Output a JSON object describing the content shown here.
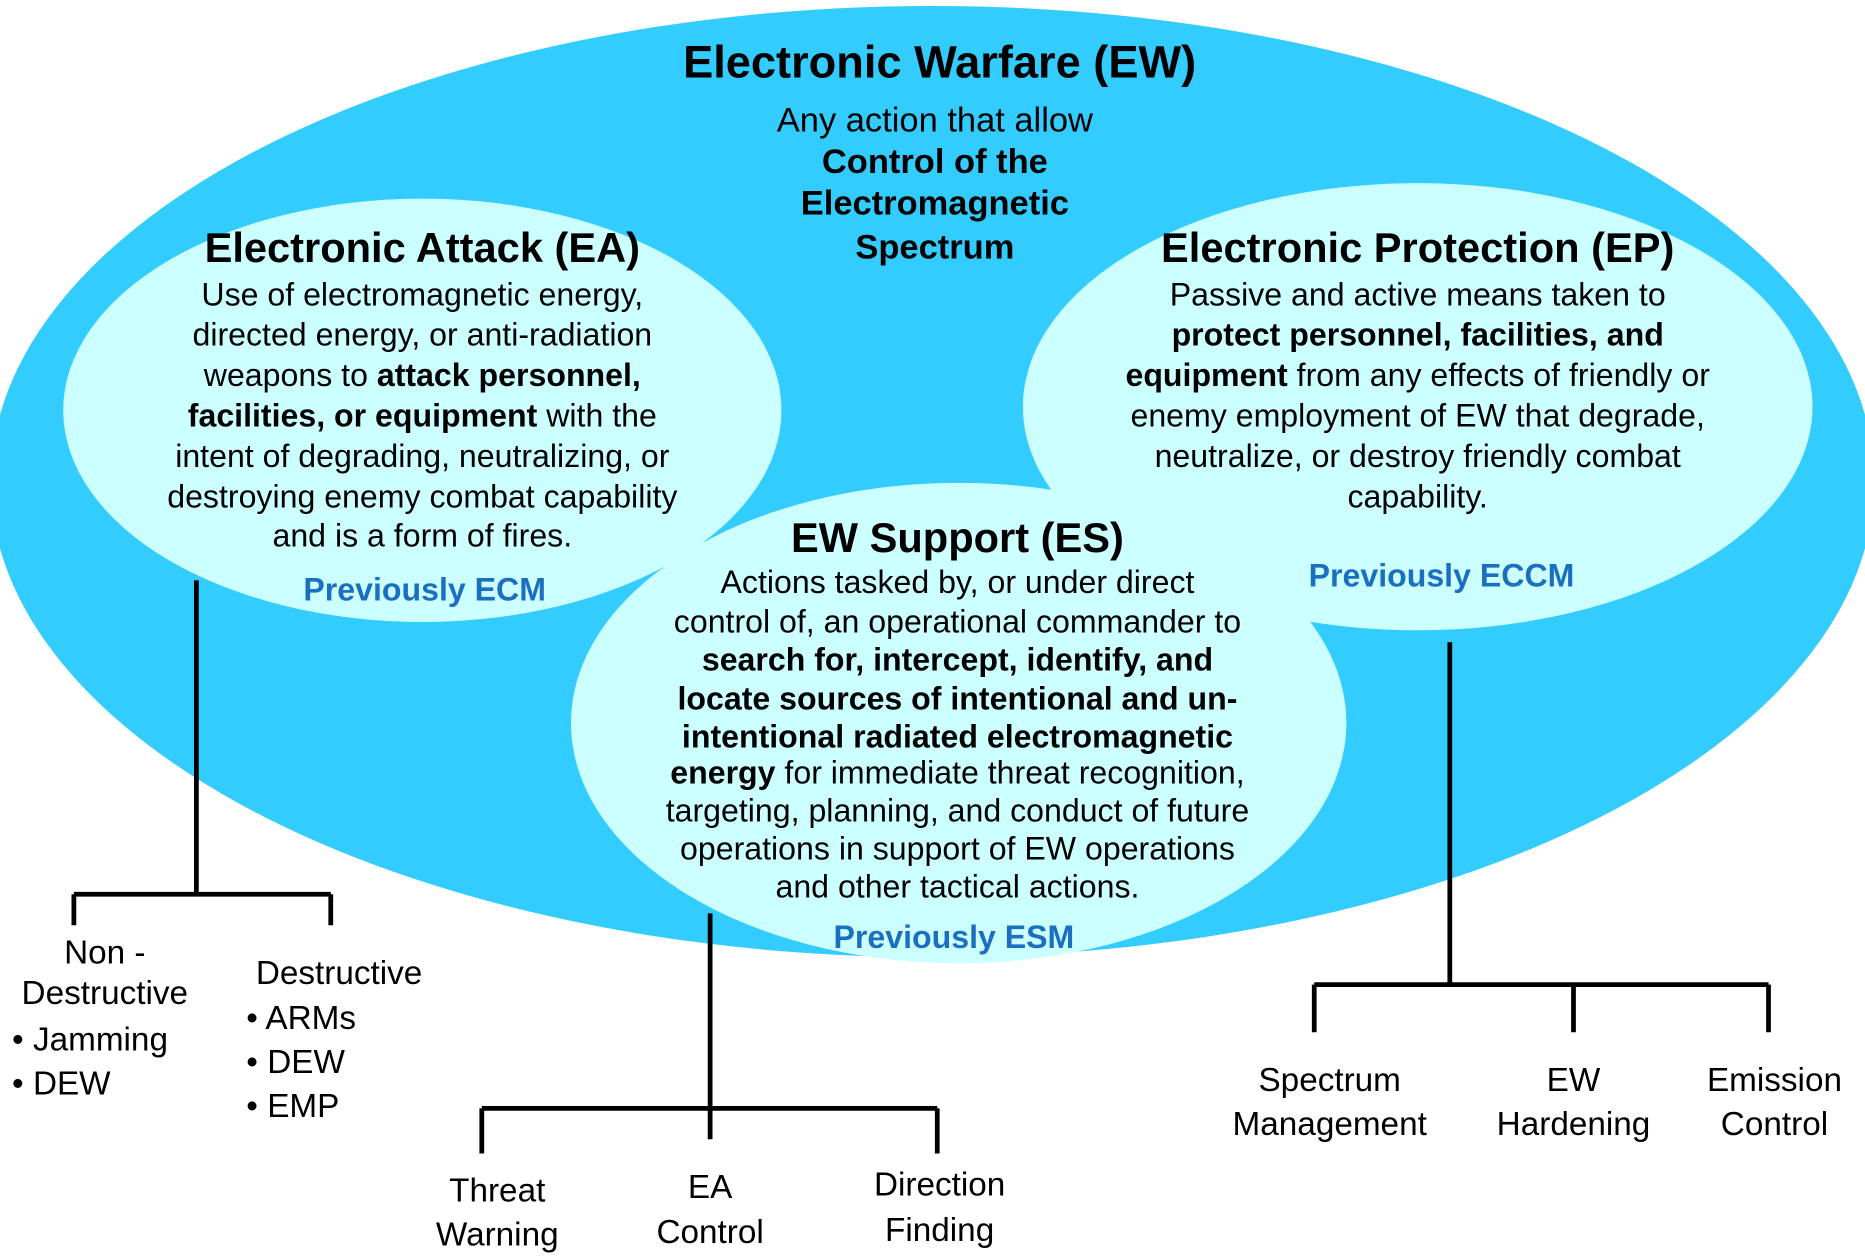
{
  "title": "Electronic Warfare (EW)",
  "definition": [
    [
      {
        "text": "Any action that allow",
        "bold": false
      }
    ],
    [
      {
        "text": "Control of the",
        "bold": true
      }
    ],
    [
      {
        "text": "Electromagnetic",
        "bold": true
      }
    ],
    [
      {
        "text": "Spectrum",
        "bold": true
      }
    ]
  ],
  "sections": [
    {
      "title": "Electronic Attack (EA)",
      "lines": [
        [
          {
            "text": "Use of electromagnetic energy,",
            "bold": false
          }
        ],
        [
          {
            "text": "directed energy, or anti-radiation",
            "bold": false
          }
        ],
        [
          {
            "text": "weapons to ",
            "bold": false
          },
          {
            "text": "attack personnel,",
            "bold": true
          }
        ],
        [
          {
            "text": "facilities, or equipment",
            "bold": true
          },
          {
            "text": " with the",
            "bold": false
          }
        ],
        [
          {
            "text": "intent of degrading, neutralizing, or",
            "bold": false
          }
        ],
        [
          {
            "text": "destroying enemy combat capability",
            "bold": false
          }
        ],
        [
          {
            "text": "and is a form of fires.",
            "bold": false
          }
        ]
      ],
      "previously": "Previously ECM",
      "branches": [
        {
          "label": [
            "Non -",
            "Destructive"
          ],
          "items": [
            "• Jamming",
            "• DEW"
          ]
        },
        {
          "label": [
            "Destructive"
          ],
          "items": [
            "• ARMs",
            "• DEW",
            "• EMP"
          ]
        }
      ]
    },
    {
      "title": "Electronic Protection (EP)",
      "lines": [
        [
          {
            "text": "Passive and active means taken to",
            "bold": false
          }
        ],
        [
          {
            "text": "protect personnel, facilities, and",
            "bold": true
          }
        ],
        [
          {
            "text": "equipment",
            "bold": true
          },
          {
            "text": " from any effects of friendly or",
            "bold": false
          }
        ],
        [
          {
            "text": "enemy employment of EW that degrade,",
            "bold": false
          }
        ],
        [
          {
            "text": "neutralize, or destroy friendly combat",
            "bold": false
          }
        ],
        [
          {
            "text": "capability.",
            "bold": false
          }
        ]
      ],
      "previously": "Previously ECCM",
      "branches": [
        {
          "label": [
            "Spectrum",
            "Management"
          ],
          "items": []
        },
        {
          "label": [
            "EW",
            "Hardening"
          ],
          "items": []
        },
        {
          "label": [
            "Emission",
            "Control"
          ],
          "items": []
        }
      ]
    },
    {
      "title": "EW Support (ES)",
      "lines": [
        [
          {
            "text": "Actions tasked by, or under direct",
            "bold": false
          }
        ],
        [
          {
            "text": "control of, an operational commander to",
            "bold": false
          }
        ],
        [
          {
            "text": "search for, intercept, identify, and",
            "bold": true
          }
        ],
        [
          {
            "text": "locate sources of intentional and un-",
            "bold": true
          }
        ],
        [
          {
            "text": "intentional radiated electromagnetic",
            "bold": true
          }
        ],
        [
          {
            "text": "energy",
            "bold": true
          },
          {
            "text": " for immediate threat recognition,",
            "bold": false
          }
        ],
        [
          {
            "text": "targeting, planning, and conduct of future",
            "bold": false
          }
        ],
        [
          {
            "text": "operations in support of EW operations",
            "bold": false
          }
        ],
        [
          {
            "text": "and other tactical actions.",
            "bold": false
          }
        ]
      ],
      "previously": "Previously ESM",
      "branches": [
        {
          "label": [
            "Threat",
            "Warning"
          ],
          "items": []
        },
        {
          "label": [
            "EA",
            "Control"
          ],
          "items": []
        },
        {
          "label": [
            "Direction",
            "Finding"
          ],
          "items": []
        }
      ]
    }
  ]
}
